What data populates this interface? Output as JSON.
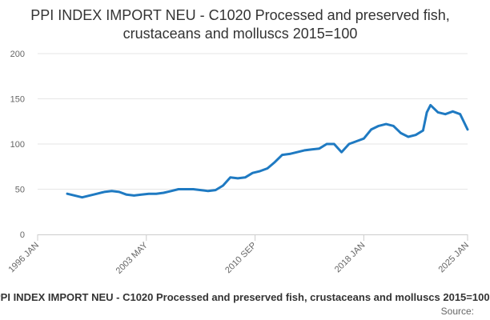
{
  "chart_data": {
    "type": "line",
    "title": "PPI INDEX IMPORT NEU - C1020 Processed and preserved fish, crustaceans and molluscs 2015=100",
    "xlabel": "",
    "ylabel": "",
    "x_axis_type": "date",
    "xlim": [
      "1996-01",
      "2025-01"
    ],
    "ylim": [
      0,
      200
    ],
    "x_ticks": [
      "1996 JAN",
      "2003 MAY",
      "2010 SEP",
      "2018 JAN",
      "2025 JAN"
    ],
    "y_ticks": [
      0,
      50,
      100,
      150,
      200
    ],
    "grid": "horizontal",
    "legend": "none",
    "line_color": "#1f7ac2",
    "series": [
      {
        "x": [
          "1998-01",
          "1998-07",
          "1999-01",
          "1999-07",
          "2000-01",
          "2000-07",
          "2001-01",
          "2001-07",
          "2002-01",
          "2002-07",
          "2003-01",
          "2003-07",
          "2004-01",
          "2004-07",
          "2005-01",
          "2005-07",
          "2006-01",
          "2006-07",
          "2007-01",
          "2007-07",
          "2008-01",
          "2008-07",
          "2009-01",
          "2009-07",
          "2010-01",
          "2010-07",
          "2011-01",
          "2011-07",
          "2012-01",
          "2012-07",
          "2013-01",
          "2013-07",
          "2014-01",
          "2014-07",
          "2015-01",
          "2015-07",
          "2016-01",
          "2016-07",
          "2017-01",
          "2017-07",
          "2018-01",
          "2018-07",
          "2019-01",
          "2019-07",
          "2020-01",
          "2020-07",
          "2021-01",
          "2021-07",
          "2022-01",
          "2022-04",
          "2022-07",
          "2023-01",
          "2023-07",
          "2024-01",
          "2024-07",
          "2025-01"
        ],
        "values": [
          45,
          43,
          41,
          43,
          45,
          47,
          48,
          47,
          44,
          43,
          44,
          45,
          45,
          46,
          48,
          50,
          50,
          50,
          49,
          48,
          49,
          54,
          63,
          62,
          63,
          68,
          70,
          73,
          80,
          88,
          89,
          91,
          93,
          94,
          95,
          100,
          100,
          91,
          100,
          103,
          106,
          116,
          120,
          122,
          120,
          112,
          108,
          110,
          115,
          135,
          143,
          135,
          133,
          136,
          133,
          116
        ]
      }
    ]
  },
  "footer": {
    "caption": "PPI INDEX IMPORT NEU - C1020 Processed and preserved fish, crustaceans and molluscs 2015=100",
    "source": "Source:"
  }
}
